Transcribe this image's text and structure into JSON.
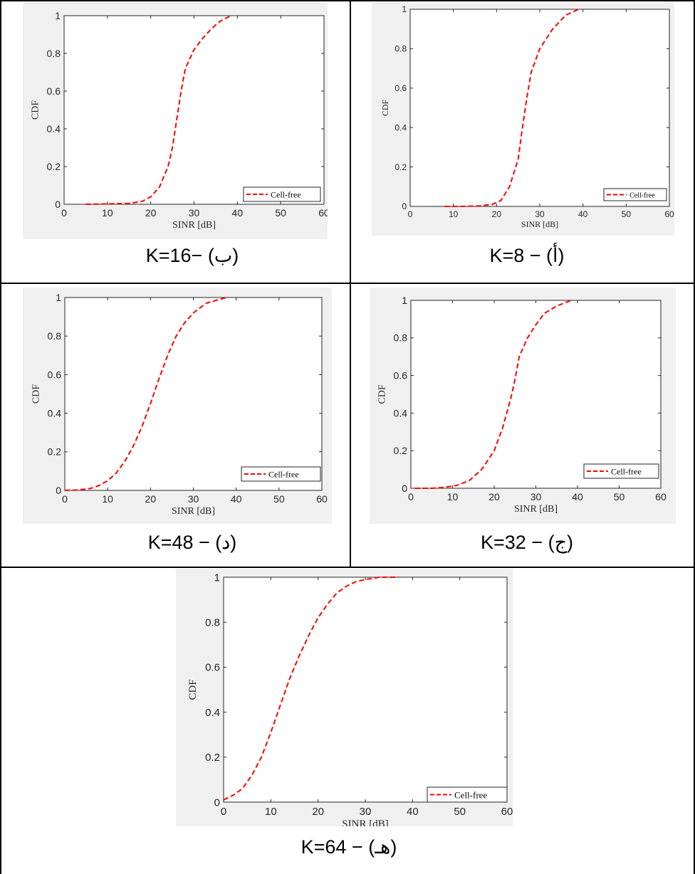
{
  "chart_data": [
    {
      "type": "line",
      "caption": "K=8 − (أ)",
      "xlabel": "SINR [dB]",
      "ylabel": "CDF",
      "xlim": [
        0,
        60
      ],
      "ylim": [
        0,
        1
      ],
      "x_ticks": [
        "0",
        "10",
        "20",
        "30",
        "40",
        "50",
        "60"
      ],
      "y_ticks": [
        "0",
        "0.2",
        "0.4",
        "0.6",
        "0.8",
        "1"
      ],
      "grid": false,
      "legend_position": "bottom-right",
      "series": [
        {
          "name": "Cell-free",
          "color": "#ff0000",
          "style": "dashed",
          "x": [
            8,
            12,
            16,
            19,
            21,
            23,
            25,
            26,
            27,
            28,
            30,
            33,
            36,
            39
          ],
          "y": [
            0,
            0,
            0.003,
            0.01,
            0.03,
            0.1,
            0.24,
            0.4,
            0.55,
            0.68,
            0.8,
            0.9,
            0.97,
            1.0
          ]
        }
      ]
    },
    {
      "type": "line",
      "caption": "K=16− (ب)",
      "xlabel": "SINR [dB]",
      "ylabel": "CDF",
      "xlim": [
        0,
        60
      ],
      "ylim": [
        0,
        1
      ],
      "x_ticks": [
        "0",
        "10",
        "20",
        "30",
        "40",
        "50",
        "60"
      ],
      "y_ticks": [
        "0",
        "0.2",
        "0.4",
        "0.6",
        "0.8",
        "1"
      ],
      "grid": false,
      "legend_position": "bottom-right",
      "series": [
        {
          "name": "Cell-free",
          "color": "#ff0000",
          "style": "dashed",
          "x": [
            5,
            10,
            15,
            18,
            20,
            22,
            24,
            25,
            26,
            27,
            28,
            30,
            32,
            34,
            36,
            38.5
          ],
          "y": [
            0,
            0.002,
            0.005,
            0.015,
            0.04,
            0.09,
            0.2,
            0.3,
            0.45,
            0.6,
            0.72,
            0.82,
            0.88,
            0.93,
            0.97,
            1.0
          ]
        }
      ]
    },
    {
      "type": "line",
      "caption": "K=32 − (ج)",
      "xlabel": "SINR [dB]",
      "ylabel": "CDF",
      "xlim": [
        0,
        60
      ],
      "ylim": [
        0,
        1
      ],
      "x_ticks": [
        "0",
        "10",
        "20",
        "30",
        "40",
        "50",
        "60"
      ],
      "y_ticks": [
        "0",
        "0.2",
        "0.4",
        "0.6",
        "0.8",
        "1"
      ],
      "grid": false,
      "legend_position": "bottom-right",
      "series": [
        {
          "name": "Cell-free",
          "color": "#ff0000",
          "style": "dashed",
          "x": [
            1,
            5,
            8,
            11,
            14,
            17,
            20,
            22,
            24,
            25,
            26,
            28,
            30,
            32,
            35,
            38.5
          ],
          "y": [
            0,
            0,
            0.005,
            0.015,
            0.04,
            0.1,
            0.2,
            0.32,
            0.48,
            0.58,
            0.7,
            0.8,
            0.87,
            0.93,
            0.97,
            1.0
          ]
        }
      ]
    },
    {
      "type": "line",
      "caption": "K=48 − (د)",
      "xlabel": "SINR [dB]",
      "ylabel": "CDF",
      "xlim": [
        0,
        60
      ],
      "ylim": [
        0,
        1
      ],
      "x_ticks": [
        "0",
        "10",
        "20",
        "30",
        "40",
        "50",
        "60"
      ],
      "y_ticks": [
        "0",
        "0.2",
        "0.4",
        "0.6",
        "0.8",
        "1"
      ],
      "grid": false,
      "legend_position": "bottom-right",
      "series": [
        {
          "name": "Cell-free",
          "color": "#ff0000",
          "style": "dashed",
          "x": [
            0,
            3,
            6,
            8,
            10,
            12,
            14,
            16,
            18,
            20,
            22,
            24,
            26,
            28,
            30,
            33,
            36,
            38
          ],
          "y": [
            0,
            0.002,
            0.01,
            0.025,
            0.05,
            0.09,
            0.15,
            0.23,
            0.33,
            0.45,
            0.58,
            0.7,
            0.8,
            0.87,
            0.92,
            0.97,
            0.99,
            1.0
          ]
        }
      ]
    },
    {
      "type": "line",
      "caption": "K=64 − (هـ)",
      "xlabel": "SINR [dB]",
      "ylabel": "CDF",
      "xlim": [
        0,
        60
      ],
      "ylim": [
        0,
        1
      ],
      "x_ticks": [
        "0",
        "10",
        "20",
        "30",
        "40",
        "50",
        "60"
      ],
      "y_ticks": [
        "0",
        "0.2",
        "0.4",
        "0.6",
        "0.8",
        "1"
      ],
      "grid": false,
      "legend_position": "bottom-right",
      "series": [
        {
          "name": "Cell-free",
          "color": "#ff0000",
          "style": "dashed",
          "x": [
            0,
            2,
            4,
            6,
            8,
            10,
            12,
            14,
            16,
            18,
            20,
            22,
            24,
            26,
            28,
            30,
            33,
            37
          ],
          "y": [
            0.01,
            0.03,
            0.06,
            0.12,
            0.2,
            0.31,
            0.43,
            0.55,
            0.65,
            0.74,
            0.82,
            0.88,
            0.93,
            0.96,
            0.98,
            0.99,
            1.0,
            1.0
          ]
        }
      ]
    }
  ]
}
